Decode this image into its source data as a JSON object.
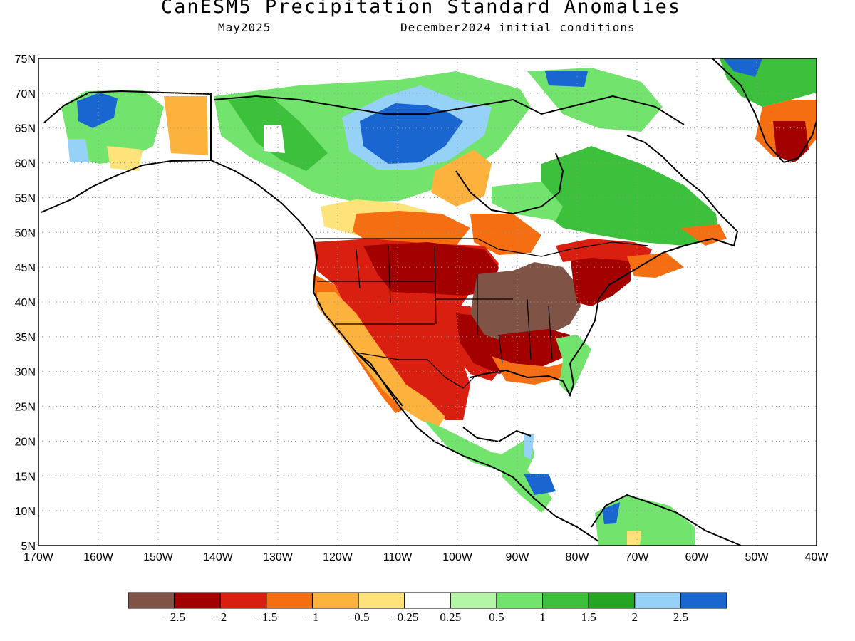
{
  "title": "CanESM5 Precipitation Standard Anomalies",
  "subtitle_left": "May2025",
  "subtitle_right": "December2024 initial conditions",
  "axes": {
    "lon_min": -170,
    "lon_max": -40,
    "lat_min": 5,
    "lat_max": 75,
    "lat_labels": [
      "75N",
      "70N",
      "65N",
      "60N",
      "55N",
      "50N",
      "45N",
      "40N",
      "35N",
      "30N",
      "25N",
      "20N",
      "15N",
      "10N",
      "5N"
    ],
    "lon_labels": [
      "170W",
      "160W",
      "150W",
      "140W",
      "130W",
      "120W",
      "110W",
      "100W",
      "90W",
      "80W",
      "70W",
      "60W",
      "50W",
      "40W"
    ],
    "grid": "dotted"
  },
  "colorbar": {
    "colors": [
      "#7f5447",
      "#a30000",
      "#d91f0f",
      "#f56e12",
      "#fcb23c",
      "#fde37a",
      "#ffffff",
      "#b4f6a5",
      "#72e36c",
      "#3dc13c",
      "#25a623",
      "#96d2f7",
      "#1a66d1"
    ],
    "labels": [
      "−2.5",
      "−2",
      "−1.5",
      "−1",
      "−0.5",
      "−0.25",
      "0.25",
      "0.5",
      "1",
      "1.5",
      "2",
      "2.5"
    ]
  },
  "anomaly_regions": [
    {
      "name": "Western Alaska",
      "class": "2.5",
      "color": "#1a66d1"
    },
    {
      "name": "Southern Alaska",
      "class": "-0.5",
      "color": "#fcb23c"
    },
    {
      "name": "Northern Canada",
      "class": "1",
      "color": "#72e36c"
    },
    {
      "name": "Nunavut",
      "class": "2.5",
      "color": "#1a66d1"
    },
    {
      "name": "Canadian Prairies",
      "class": "-1",
      "color": "#f56e12"
    },
    {
      "name": "Western US",
      "class": "-1.5",
      "color": "#d91f0f"
    },
    {
      "name": "Northern Plains",
      "class": "-2",
      "color": "#a30000"
    },
    {
      "name": "Ohio Valley",
      "class": "<-2.5",
      "color": "#7f5447"
    },
    {
      "name": "Southwest US",
      "class": "-0.5",
      "color": "#fcb23c"
    },
    {
      "name": "Texas",
      "class": "-1.5",
      "color": "#d91f0f"
    },
    {
      "name": "Quebec / Labrador",
      "class": "1.5",
      "color": "#3dc13c"
    },
    {
      "name": "Northeast US",
      "class": "-2",
      "color": "#a30000"
    },
    {
      "name": "Southern Greenland",
      "class": "-2",
      "color": "#a30000"
    },
    {
      "name": "Central America",
      "class": "1",
      "color": "#72e36c"
    },
    {
      "name": "Northern South America",
      "class": "1",
      "color": "#72e36c"
    }
  ]
}
